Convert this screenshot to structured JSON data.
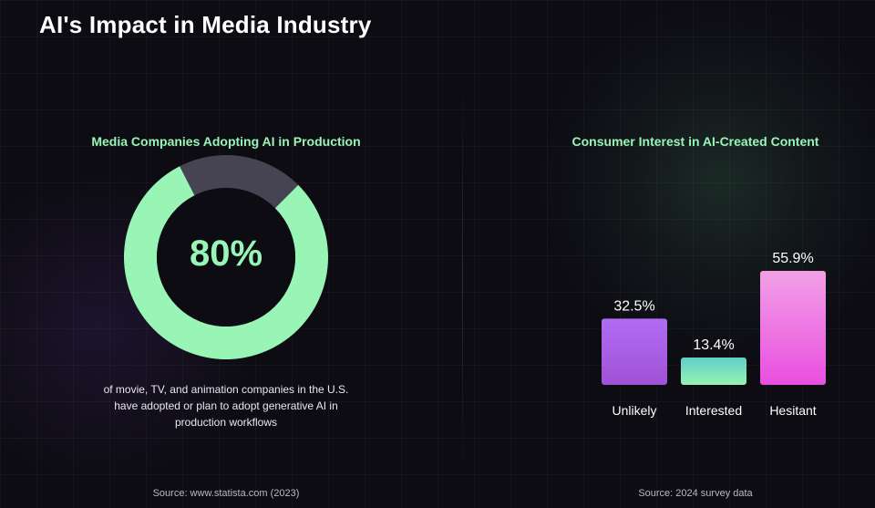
{
  "title": "AI's Impact in Media Industry",
  "left_panel": {
    "title": "Media Companies Adopting AI in Production",
    "value_label": "80%",
    "caption": "of movie, TV, and animation companies in the U.S. have adopted or plan to adopt generative AI in production workflows",
    "source": "Source: www.statista.com (2023)"
  },
  "right_panel": {
    "title": "Consumer Interest in AI-Created Content",
    "source": "Source: 2024 survey data"
  },
  "colors": {
    "accent_green": "#98f5b6",
    "remainder_gray": "#464452",
    "unlikely": "#a35fe8",
    "interested": "#7ee0c2",
    "hesitant": "#ee7ee6"
  },
  "chart_data": [
    {
      "type": "pie",
      "title": "Media Companies Adopting AI in Production",
      "slices": [
        {
          "value": 80
        },
        {
          "value": 20
        }
      ],
      "center_label": "80%",
      "donut": true
    },
    {
      "type": "bar",
      "title": "Consumer Interest in AI-Created Content",
      "categories": [
        "Unlikely",
        "Interested",
        "Hesitant"
      ],
      "values": [
        32.5,
        13.4,
        55.9
      ],
      "value_labels": [
        "32.5%",
        "13.4%",
        "55.9%"
      ],
      "ylim": [
        0,
        55.9
      ],
      "grid": false
    }
  ]
}
